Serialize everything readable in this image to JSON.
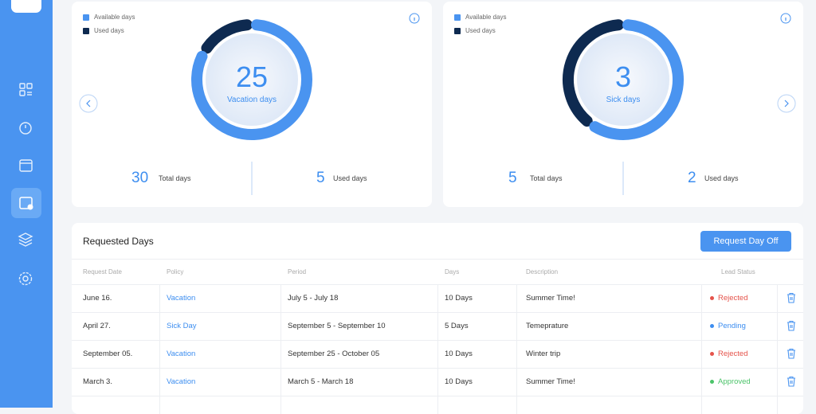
{
  "cards": [
    {
      "legend": [
        "Available days",
        "Used days"
      ],
      "value": 25,
      "label": "Vacation days",
      "total": 30,
      "total_label": "Total days",
      "used": 5,
      "used_label": "Used days"
    },
    {
      "legend": [
        "Available days",
        "Used days"
      ],
      "value": 3,
      "label": "Sick days",
      "total": 5,
      "total_label": "Total days",
      "used": 2,
      "used_label": "Used days"
    }
  ],
  "requests": {
    "title": "Requested Days",
    "button": "Request Day Off",
    "columns": [
      "Request Date",
      "Policy",
      "Period",
      "Days",
      "Description",
      "Lead Status"
    ],
    "rows": [
      {
        "date": "June 16.",
        "policy": "Vacation",
        "period": "July 5 - July 18",
        "days": "10 Days",
        "description": "Summer Time!",
        "status": "Rejected",
        "status_color": "#e5534b"
      },
      {
        "date": "April 27.",
        "policy": "Sick Day",
        "period": "September 5 - September 10",
        "days": "5 Days",
        "description": "Temeprature",
        "status": "Pending",
        "status_color": "#3d8ef0"
      },
      {
        "date": "September 05.",
        "policy": "Vacation",
        "period": "September 25 - October 05",
        "days": "10 Days",
        "description": "Winter trip",
        "status": "Rejected",
        "status_color": "#e5534b"
      },
      {
        "date": "March 3.",
        "policy": "Vacation",
        "period": "March 5 - March 18",
        "days": "10 Days",
        "description": "Summer Time!",
        "status": "Approved",
        "status_color": "#4cc46a"
      }
    ]
  }
}
